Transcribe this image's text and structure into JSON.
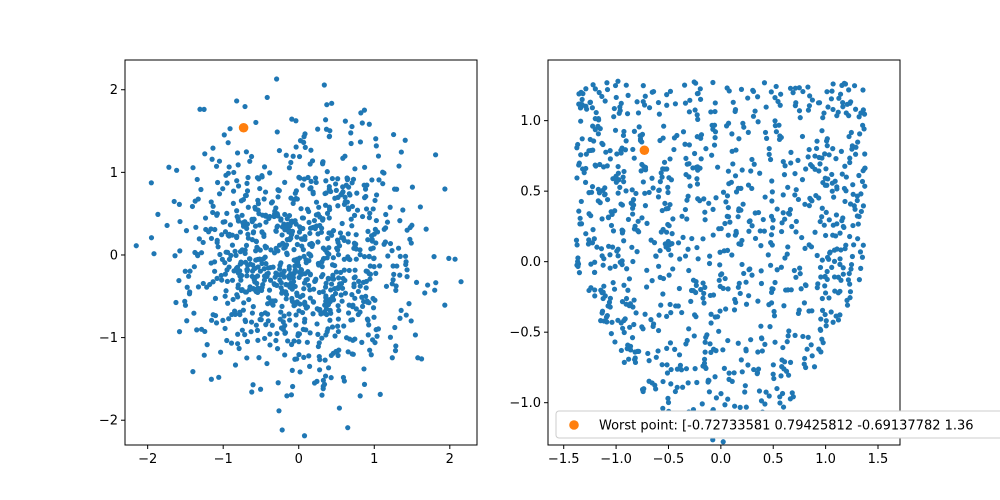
{
  "chart_data": [
    {
      "type": "scatter",
      "title": "",
      "xlabel": "",
      "ylabel": "",
      "xlim": [
        -2.3,
        2.36
      ],
      "ylim": [
        -2.3,
        2.36
      ],
      "xticks": [
        -2,
        -1,
        0,
        1,
        2
      ],
      "yticks": [
        -2,
        -1,
        0,
        1,
        2
      ],
      "grid": false,
      "series": [
        {
          "color": "#1f77b4",
          "marker": "point",
          "n_points": 1000,
          "distribution": "standard normal samples clipped to radius 2.2",
          "seed": 7
        },
        {
          "color": "#ff7f0e",
          "marker": "circle",
          "points": [
            [
              -0.73,
              1.54
            ]
          ]
        }
      ]
    },
    {
      "type": "scatter",
      "title": "",
      "xlabel": "",
      "ylabel": "",
      "xlim": [
        -1.65,
        1.71
      ],
      "ylim": [
        -1.3,
        1.43
      ],
      "xticks": [
        -1.5,
        -1.0,
        -0.5,
        0.0,
        0.5,
        1.0,
        1.5
      ],
      "yticks": [
        -1.0,
        -0.5,
        0.0,
        0.5,
        1.0
      ],
      "grid": false,
      "legend_position": "lower-right",
      "series": [
        {
          "color": "#1f77b4",
          "marker": "point",
          "n_points": 1000,
          "distribution": "transformed samples with y between 0.65*x^2 - 1.28 and 1.28",
          "seed": 11
        },
        {
          "name": "Worst point: [-0.72733581  0.79425812 -0.69137782  1.36",
          "color": "#ff7f0e",
          "marker": "circle",
          "points": [
            [
              -0.73,
              0.79
            ]
          ]
        }
      ]
    }
  ]
}
